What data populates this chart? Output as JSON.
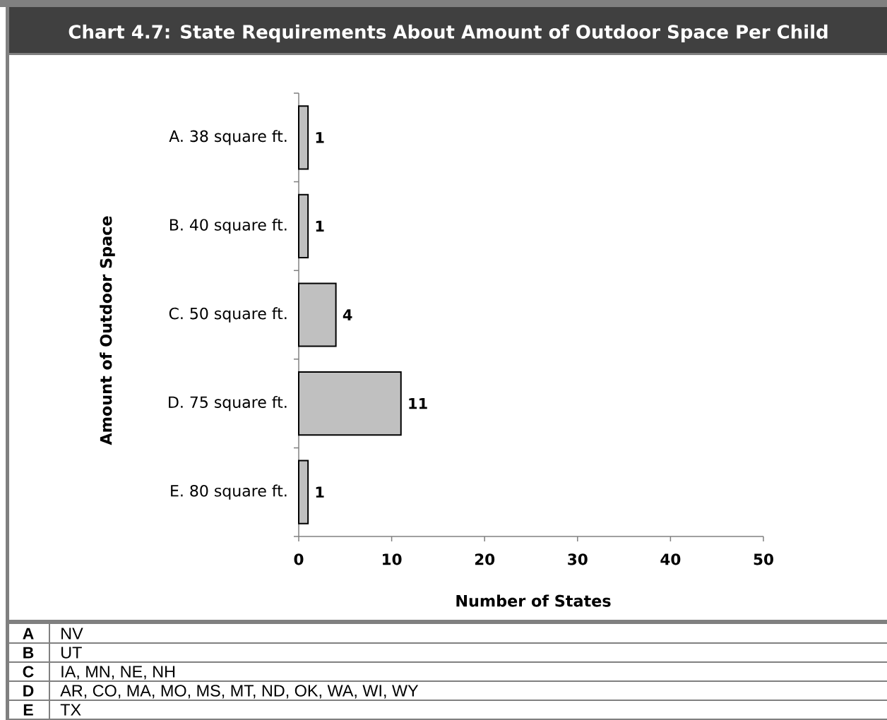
{
  "chart_data": {
    "type": "bar",
    "orientation": "horizontal",
    "title": "Chart 4.7: State Requirements About Amount of Outdoor Space Per Child",
    "categories": [
      "A. 38 square ft.",
      "B. 40 square ft.",
      "C. 50 square ft.",
      "D. 75 square ft.",
      "E. 80 square ft."
    ],
    "values": [
      1,
      1,
      4,
      11,
      1
    ],
    "color": "#c0c0c0",
    "data_labels": true,
    "xlabel": "Number of States",
    "ylabel": "Amount of Outdoor Space",
    "xlim": [
      0,
      50
    ],
    "xticks": [
      0,
      10,
      20,
      30,
      40,
      50
    ],
    "annotations": [
      "A",
      "NV",
      "B",
      "UT",
      "C",
      "IA, MN, NE, NH",
      "D",
      "AR, CO, MA, MO, MS, MT, ND, OK, WA, WI, WY",
      "E",
      "TX"
    ]
  }
}
